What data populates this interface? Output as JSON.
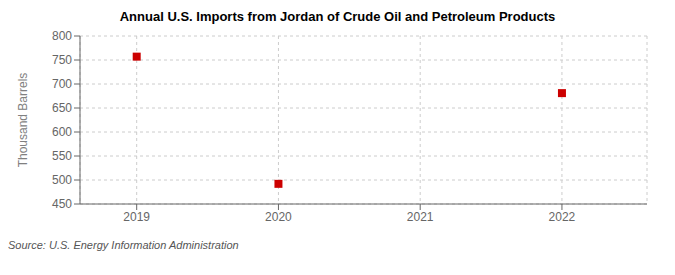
{
  "chart_data": {
    "type": "scatter",
    "title": "Annual U.S. Imports from Jordan of Crude Oil and Petroleum Products",
    "ylabel": "Thousand Barrels",
    "annotations": [
      "Source: U.S. Energy Information Administration"
    ],
    "x": [
      2019,
      2020,
      2021,
      2022
    ],
    "values": [
      757,
      492,
      null,
      681
    ],
    "color": "#cc0000",
    "marker": "square",
    "xlim": [
      2018.6,
      2022.6
    ],
    "xticks": [
      2019,
      2020,
      2021,
      2022
    ],
    "ylim": [
      450,
      800
    ],
    "yticks": [
      450,
      500,
      550,
      600,
      650,
      700,
      750,
      800
    ],
    "grid": true
  }
}
